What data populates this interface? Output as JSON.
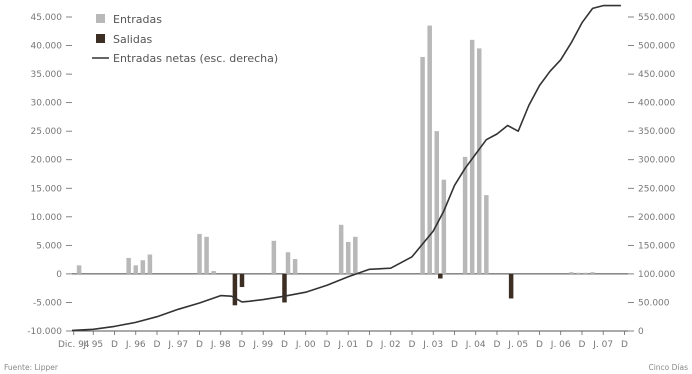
{
  "chart_data": {
    "type": "bar",
    "title": "",
    "xlabel": "",
    "ylabel": "",
    "ylim": [
      -10000,
      45000
    ],
    "y2lim": [
      0,
      550000
    ],
    "yticks": [
      {
        "value": 45000,
        "label": "45.000"
      },
      {
        "value": 40000,
        "label": "40.000"
      },
      {
        "value": 35000,
        "label": "35.000"
      },
      {
        "value": 30000,
        "label": "30.000"
      },
      {
        "value": 25000,
        "label": "25.000"
      },
      {
        "value": 20000,
        "label": "20.000"
      },
      {
        "value": 15000,
        "label": "15.000"
      },
      {
        "value": 10000,
        "label": "10.000"
      },
      {
        "value": 5000,
        "label": "5.000"
      },
      {
        "value": 0,
        "label": "0"
      },
      {
        "value": -5000,
        "label": "-5.000"
      },
      {
        "value": -10000,
        "label": "-10.000"
      }
    ],
    "y2ticks": [
      {
        "value": 550000,
        "label": "550.000"
      },
      {
        "value": 500000,
        "label": "500.000"
      },
      {
        "value": 450000,
        "label": "450.000"
      },
      {
        "value": 400000,
        "label": "400.000"
      },
      {
        "value": 350000,
        "label": "350.000"
      },
      {
        "value": 300000,
        "label": "300.000"
      },
      {
        "value": 250000,
        "label": "250.000"
      },
      {
        "value": 200000,
        "label": "200.000"
      },
      {
        "value": 150000,
        "label": "150.000"
      },
      {
        "value": 100000,
        "label": "100.000"
      },
      {
        "value": 50000,
        "label": "50.000"
      },
      {
        "value": 0,
        "label": "0"
      }
    ],
    "xticks": [
      {
        "x": 0.5,
        "label": "Dic. 94"
      },
      {
        "x": 6,
        "label": "J. 95"
      },
      {
        "x": 12,
        "label": "D"
      },
      {
        "x": 18,
        "label": "J. 96"
      },
      {
        "x": 24,
        "label": "D"
      },
      {
        "x": 30,
        "label": "J. 97"
      },
      {
        "x": 36,
        "label": "D"
      },
      {
        "x": 42,
        "label": "J. 98"
      },
      {
        "x": 48,
        "label": "D"
      },
      {
        "x": 54,
        "label": "J. 99"
      },
      {
        "x": 60,
        "label": "D"
      },
      {
        "x": 66,
        "label": "J. 00"
      },
      {
        "x": 72,
        "label": "D"
      },
      {
        "x": 78,
        "label": "J. 01"
      },
      {
        "x": 84,
        "label": "D"
      },
      {
        "x": 90,
        "label": "J. 02"
      },
      {
        "x": 96,
        "label": "D"
      },
      {
        "x": 102,
        "label": "J. 03"
      },
      {
        "x": 108,
        "label": "D"
      },
      {
        "x": 114,
        "label": "J. 04"
      },
      {
        "x": 120,
        "label": "D"
      },
      {
        "x": 126,
        "label": "J. 05"
      },
      {
        "x": 132,
        "label": "D"
      },
      {
        "x": 138,
        "label": "J. 06"
      },
      {
        "x": 144,
        "label": "D"
      },
      {
        "x": 150,
        "label": "J. 07"
      },
      {
        "x": 156,
        "label": "D"
      }
    ],
    "xlim": [
      0,
      157
    ],
    "series": [
      {
        "name": "Entradas",
        "kind": "bar",
        "color": "#b8b8b8",
        "x": [
          2,
          16,
          18,
          20,
          22,
          36,
          38,
          40,
          57,
          61,
          63,
          76,
          78,
          80,
          99,
          101,
          103,
          105,
          111,
          113,
          115,
          117,
          141,
          143,
          145,
          147
        ],
        "values": [
          1500,
          2800,
          1500,
          2400,
          3400,
          7000,
          6500,
          500,
          5800,
          3800,
          2600,
          8600,
          5600,
          6500,
          38000,
          43500,
          25000,
          16500,
          20500,
          41000,
          39500,
          13800,
          300,
          200,
          200,
          300
        ]
      },
      {
        "name": "Salidas",
        "kind": "bar",
        "color": "#3d2e24",
        "x": [
          46,
          48,
          60,
          104,
          124
        ],
        "values": [
          -5500,
          -2300,
          -5000,
          -800,
          -4300
        ]
      },
      {
        "name": "Entradas netas (esc. derecha)",
        "kind": "line",
        "axis": "right",
        "color": "#333333",
        "x": [
          0,
          6,
          12,
          18,
          24,
          30,
          36,
          42,
          45,
          48,
          50,
          54,
          60,
          66,
          72,
          78,
          84,
          90,
          96,
          102,
          105,
          108,
          111,
          114,
          117,
          120,
          123,
          126,
          129,
          132,
          135,
          138,
          141,
          144,
          147,
          150,
          153,
          155
        ],
        "values": [
          1000,
          3000,
          8000,
          15000,
          25000,
          38000,
          49000,
          62000,
          61000,
          51000,
          52000,
          55000,
          61000,
          68000,
          80000,
          95000,
          108000,
          110000,
          130000,
          175000,
          210000,
          255000,
          285000,
          310000,
          335000,
          345000,
          360000,
          350000,
          395000,
          430000,
          455000,
          475000,
          505000,
          540000,
          565000,
          570000,
          570000,
          570000
        ]
      }
    ],
    "legend": {
      "placement": "top-left",
      "entries": [
        {
          "label": "Entradas",
          "marker": "bar-light"
        },
        {
          "label": "Salidas",
          "marker": "bar-dark"
        },
        {
          "label": "Entradas netas (esc. derecha)",
          "marker": "line"
        }
      ]
    },
    "grid": false,
    "source_left": "Fuente: Lipper",
    "source_right": "Cinco Días"
  }
}
